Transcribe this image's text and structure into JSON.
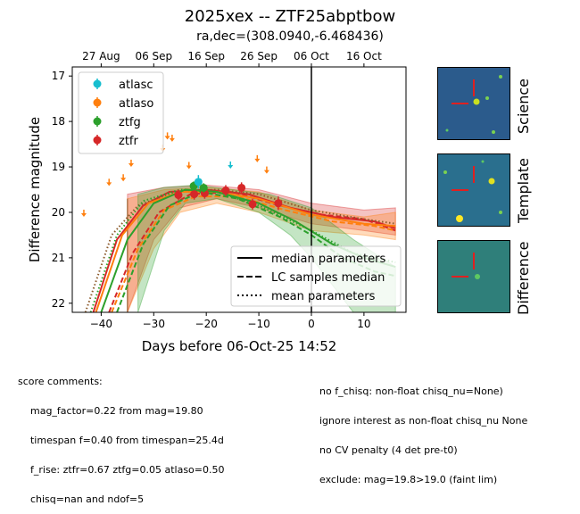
{
  "title": "2025xex -- ZTF25abptbow",
  "subtitle": "ra,dec=(308.0940,-6.468436)",
  "chart_data": {
    "type": "scatter",
    "xlabel": "Days before 06-Oct-25 14:52",
    "ylabel": "Difference magnitude",
    "xlim": [
      -45.5,
      18
    ],
    "ylim": [
      22.2,
      16.8
    ],
    "x_ticks": [
      -40,
      -30,
      -20,
      -10,
      0,
      10
    ],
    "y_ticks": [
      17,
      18,
      19,
      20,
      21,
      22
    ],
    "top_ticks": [
      {
        "x": -40,
        "label": "27 Aug"
      },
      {
        "x": -30,
        "label": "06 Sep"
      },
      {
        "x": -20,
        "label": "16 Sep"
      },
      {
        "x": -10,
        "label": "26 Sep"
      },
      {
        "x": 0,
        "label": "06 Oct"
      },
      {
        "x": 10,
        "label": "16 Oct"
      }
    ],
    "reference_line_x": 0,
    "legend_filters": [
      {
        "name": "atlasc",
        "color": "#17becf"
      },
      {
        "name": "atlaso",
        "color": "#ff7f0e"
      },
      {
        "name": "ztfg",
        "color": "#2ca02c"
      },
      {
        "name": "ztfr",
        "color": "#d62728"
      }
    ],
    "legend_lines": [
      {
        "name": "median parameters",
        "dash": "solid"
      },
      {
        "name": "LC samples median",
        "dash": "dashed"
      },
      {
        "name": "mean parameters",
        "dash": "dotted"
      }
    ],
    "detections": [
      {
        "filter": "ztfr",
        "x": -25.3,
        "y": 19.62,
        "err": 0.12
      },
      {
        "filter": "ztfr",
        "x": -22.3,
        "y": 19.6,
        "err": 0.12
      },
      {
        "filter": "ztfr",
        "x": -20.3,
        "y": 19.58,
        "err": 0.12
      },
      {
        "filter": "ztfr",
        "x": -16.3,
        "y": 19.52,
        "err": 0.12
      },
      {
        "filter": "ztfr",
        "x": -13.3,
        "y": 19.46,
        "err": 0.12
      },
      {
        "filter": "ztfr",
        "x": -11.2,
        "y": 19.82,
        "err": 0.12
      },
      {
        "filter": "ztfr",
        "x": -6.3,
        "y": 19.8,
        "err": 0.15
      },
      {
        "filter": "ztfg",
        "x": -22.4,
        "y": 19.42,
        "err": 0.1
      },
      {
        "filter": "ztfg",
        "x": -20.5,
        "y": 19.46,
        "err": 0.1
      },
      {
        "filter": "atlasc",
        "x": -21.5,
        "y": 19.33,
        "err": 0.15
      }
    ],
    "upper_limits": [
      {
        "filter": "atlaso",
        "x": -43.3,
        "y": 20.0
      },
      {
        "filter": "atlaso",
        "x": -38.5,
        "y": 19.32
      },
      {
        "filter": "atlaso",
        "x": -35.8,
        "y": 19.22
      },
      {
        "filter": "atlaso",
        "x": -34.3,
        "y": 18.9
      },
      {
        "filter": "atlaso",
        "x": -28.3,
        "y": 18.57
      },
      {
        "filter": "atlaso",
        "x": -27.4,
        "y": 18.3
      },
      {
        "filter": "atlaso",
        "x": -26.5,
        "y": 18.35
      },
      {
        "filter": "atlaso",
        "x": -23.3,
        "y": 18.95
      },
      {
        "filter": "atlaso",
        "x": -10.3,
        "y": 18.8
      },
      {
        "filter": "atlaso",
        "x": -8.5,
        "y": 19.05
      },
      {
        "filter": "atlasc",
        "x": -15.4,
        "y": 18.94
      }
    ]
  },
  "cutouts": [
    "Science",
    "Template",
    "Difference"
  ],
  "score_comments_left": [
    "score comments:",
    "    mag_factor=0.22 from mag=19.80",
    "    timespan f=0.40 from timespan=25.4d",
    "    f_rise: ztfr=0.67 ztfg=0.05 atlaso=0.50",
    "    chisq=nan and ndof=5"
  ],
  "score_comments_right": [
    "no f_chisq: non-float chisq_nu=None)",
    "ignore interest as non-float chisq_nu None",
    "no CV penalty (4 det pre-t0)",
    "exclude: mag=19.8>19.0 (faint lim)"
  ]
}
